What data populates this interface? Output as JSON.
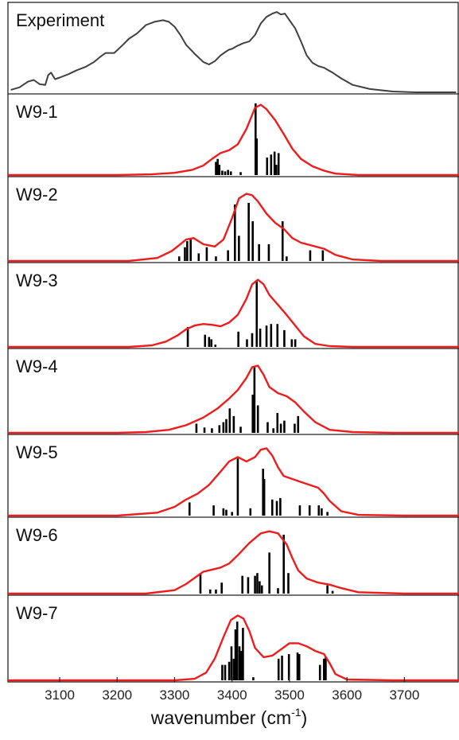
{
  "chart_data": {
    "type": "line",
    "xlabel_main": "wavenumber (cm",
    "xlabel_sup": "-1",
    "xlabel_close": ")",
    "xlim": [
      3010,
      3795
    ],
    "xticks": [
      3100,
      3200,
      3300,
      3400,
      3500,
      3600,
      3700
    ],
    "colors": {
      "experiment": "#404040",
      "simulated": "#ee1c1c",
      "sticks": "#000000"
    },
    "panels": [
      {
        "label": "Experiment",
        "kind": "experiment",
        "ylim": [
          0,
          1
        ],
        "x": [
          3015,
          3030,
          3045,
          3055,
          3065,
          3075,
          3080,
          3085,
          3092,
          3100,
          3115,
          3130,
          3145,
          3160,
          3170,
          3180,
          3195,
          3210,
          3220,
          3235,
          3250,
          3265,
          3280,
          3290,
          3300,
          3310,
          3320,
          3335,
          3350,
          3360,
          3370,
          3380,
          3390,
          3395,
          3400,
          3410,
          3420,
          3430,
          3440,
          3450,
          3460,
          3470,
          3478,
          3485,
          3492,
          3500,
          3510,
          3520,
          3530,
          3540,
          3550,
          3560,
          3575,
          3590,
          3610,
          3640,
          3680,
          3720,
          3760,
          3790
        ],
        "y": [
          0.03,
          0.06,
          0.13,
          0.15,
          0.1,
          0.09,
          0.21,
          0.24,
          0.16,
          0.18,
          0.22,
          0.27,
          0.31,
          0.37,
          0.43,
          0.48,
          0.48,
          0.58,
          0.65,
          0.72,
          0.82,
          0.86,
          0.88,
          0.86,
          0.8,
          0.7,
          0.58,
          0.47,
          0.37,
          0.34,
          0.38,
          0.45,
          0.5,
          0.52,
          0.53,
          0.57,
          0.6,
          0.62,
          0.7,
          0.84,
          0.92,
          0.96,
          0.98,
          0.95,
          0.96,
          0.88,
          0.78,
          0.62,
          0.45,
          0.36,
          0.32,
          0.3,
          0.24,
          0.17,
          0.09,
          0.04,
          0.01,
          0.0,
          0.0,
          0.0
        ]
      },
      {
        "label": "W9-1",
        "kind": "simulated",
        "ylim": [
          0,
          1
        ],
        "x": [
          3010,
          3200,
          3260,
          3300,
          3330,
          3350,
          3365,
          3380,
          3395,
          3410,
          3425,
          3440,
          3450,
          3460,
          3475,
          3490,
          3505,
          3520,
          3540,
          3560,
          3580,
          3620,
          3700,
          3795
        ],
        "y": [
          0.0,
          0.0,
          0.01,
          0.03,
          0.07,
          0.13,
          0.22,
          0.3,
          0.34,
          0.42,
          0.63,
          0.92,
          0.96,
          0.9,
          0.75,
          0.56,
          0.36,
          0.22,
          0.12,
          0.06,
          0.02,
          0.0,
          0.0,
          0.0
        ],
        "sticks": [
          [
            3372,
            0.18
          ],
          [
            3375,
            0.22
          ],
          [
            3378,
            0.14
          ],
          [
            3383,
            0.06
          ],
          [
            3388,
            0.05
          ],
          [
            3393,
            0.07
          ],
          [
            3398,
            0.05
          ],
          [
            3415,
            0.04
          ],
          [
            3441,
            0.98
          ],
          [
            3443,
            0.5
          ],
          [
            3461,
            0.24
          ],
          [
            3468,
            0.28
          ],
          [
            3474,
            0.32
          ],
          [
            3477,
            0.14
          ],
          [
            3481,
            0.3
          ]
        ]
      },
      {
        "label": "W9-2",
        "kind": "simulated",
        "ylim": [
          0,
          1
        ],
        "x": [
          3010,
          3220,
          3270,
          3295,
          3310,
          3320,
          3333,
          3350,
          3370,
          3385,
          3400,
          3412,
          3425,
          3435,
          3445,
          3460,
          3475,
          3490,
          3505,
          3520,
          3540,
          3560,
          3580,
          3610,
          3660,
          3720,
          3795
        ],
        "y": [
          0.0,
          0.0,
          0.04,
          0.13,
          0.22,
          0.28,
          0.3,
          0.22,
          0.19,
          0.28,
          0.56,
          0.82,
          0.88,
          0.86,
          0.78,
          0.62,
          0.5,
          0.42,
          0.3,
          0.24,
          0.2,
          0.16,
          0.08,
          0.02,
          0.0,
          0.0,
          0.0
        ],
        "sticks": [
          [
            3308,
            0.06
          ],
          [
            3318,
            0.18
          ],
          [
            3322,
            0.26
          ],
          [
            3328,
            0.28
          ],
          [
            3342,
            0.1
          ],
          [
            3356,
            0.18
          ],
          [
            3372,
            0.06
          ],
          [
            3393,
            0.14
          ],
          [
            3405,
            0.74
          ],
          [
            3412,
            0.33
          ],
          [
            3429,
            0.76
          ],
          [
            3436,
            0.52
          ],
          [
            3447,
            0.22
          ],
          [
            3464,
            0.22
          ],
          [
            3488,
            0.52
          ],
          [
            3495,
            0.06
          ],
          [
            3536,
            0.14
          ],
          [
            3558,
            0.14
          ]
        ]
      },
      {
        "label": "W9-3",
        "kind": "simulated",
        "ylim": [
          0,
          1
        ],
        "x": [
          3010,
          3220,
          3260,
          3285,
          3305,
          3320,
          3335,
          3350,
          3365,
          3380,
          3395,
          3410,
          3425,
          3435,
          3445,
          3455,
          3465,
          3480,
          3495,
          3510,
          3525,
          3545,
          3570,
          3610,
          3700,
          3795
        ],
        "y": [
          0.0,
          0.0,
          0.02,
          0.07,
          0.15,
          0.23,
          0.28,
          0.3,
          0.29,
          0.27,
          0.32,
          0.42,
          0.63,
          0.82,
          0.88,
          0.82,
          0.68,
          0.55,
          0.42,
          0.28,
          0.14,
          0.04,
          0.01,
          0.0,
          0.0,
          0.0
        ],
        "sticks": [
          [
            3323,
            0.26
          ],
          [
            3353,
            0.16
          ],
          [
            3360,
            0.13
          ],
          [
            3364,
            0.1
          ],
          [
            3371,
            0.03
          ],
          [
            3411,
            0.2
          ],
          [
            3426,
            0.1
          ],
          [
            3435,
            0.18
          ],
          [
            3443,
            0.86
          ],
          [
            3449,
            0.24
          ],
          [
            3460,
            0.28
          ],
          [
            3468,
            0.3
          ],
          [
            3479,
            0.3
          ],
          [
            3491,
            0.22
          ],
          [
            3504,
            0.1
          ],
          [
            3510,
            0.1
          ]
        ]
      },
      {
        "label": "W9-4",
        "kind": "simulated",
        "ylim": [
          0,
          1
        ],
        "x": [
          3010,
          3200,
          3250,
          3290,
          3320,
          3350,
          3375,
          3395,
          3410,
          3425,
          3435,
          3445,
          3455,
          3465,
          3480,
          3495,
          3510,
          3525,
          3545,
          3570,
          3610,
          3680,
          3795
        ],
        "y": [
          0.0,
          0.0,
          0.01,
          0.04,
          0.1,
          0.2,
          0.32,
          0.45,
          0.56,
          0.72,
          0.86,
          0.88,
          0.76,
          0.6,
          0.52,
          0.48,
          0.4,
          0.28,
          0.14,
          0.04,
          0.01,
          0.0,
          0.0
        ],
        "sticks": [
          [
            3338,
            0.12
          ],
          [
            3352,
            0.07
          ],
          [
            3365,
            0.06
          ],
          [
            3378,
            0.1
          ],
          [
            3385,
            0.14
          ],
          [
            3390,
            0.18
          ],
          [
            3396,
            0.32
          ],
          [
            3403,
            0.22
          ],
          [
            3415,
            0.08
          ],
          [
            3436,
            0.5
          ],
          [
            3439,
            0.86
          ],
          [
            3445,
            0.36
          ],
          [
            3462,
            0.14
          ],
          [
            3472,
            0.06
          ],
          [
            3479,
            0.26
          ],
          [
            3485,
            0.12
          ],
          [
            3491,
            0.16
          ],
          [
            3509,
            0.12
          ],
          [
            3515,
            0.22
          ]
        ]
      },
      {
        "label": "W9-5",
        "kind": "simulated",
        "ylim": [
          0,
          1
        ],
        "x": [
          3010,
          3200,
          3270,
          3300,
          3320,
          3340,
          3360,
          3380,
          3395,
          3410,
          3425,
          3440,
          3450,
          3460,
          3470,
          3480,
          3490,
          3505,
          3520,
          3535,
          3550,
          3560,
          3570,
          3590,
          3620,
          3700,
          3795
        ],
        "y": [
          0.0,
          0.0,
          0.04,
          0.12,
          0.22,
          0.3,
          0.42,
          0.6,
          0.74,
          0.8,
          0.74,
          0.8,
          0.9,
          0.92,
          0.82,
          0.66,
          0.54,
          0.5,
          0.46,
          0.42,
          0.38,
          0.3,
          0.2,
          0.06,
          0.01,
          0.0,
          0.0
        ],
        "sticks": [
          [
            3326,
            0.18
          ],
          [
            3368,
            0.14
          ],
          [
            3385,
            0.1
          ],
          [
            3390,
            0.08
          ],
          [
            3400,
            0.05
          ],
          [
            3410,
            0.78
          ],
          [
            3432,
            0.1
          ],
          [
            3454,
            0.64
          ],
          [
            3456,
            0.5
          ],
          [
            3470,
            0.22
          ],
          [
            3478,
            0.2
          ],
          [
            3484,
            0.24
          ],
          [
            3518,
            0.14
          ],
          [
            3535,
            0.14
          ],
          [
            3551,
            0.14
          ],
          [
            3556,
            0.1
          ],
          [
            3566,
            0.05
          ]
        ]
      },
      {
        "label": "W9-6",
        "kind": "simulated",
        "ylim": [
          0,
          1
        ],
        "x": [
          3010,
          3250,
          3300,
          3320,
          3340,
          3350,
          3365,
          3380,
          3395,
          3410,
          3430,
          3450,
          3465,
          3480,
          3495,
          3505,
          3515,
          3530,
          3550,
          3570,
          3590,
          3620,
          3700,
          3795
        ],
        "y": [
          0.0,
          0.0,
          0.05,
          0.14,
          0.26,
          0.32,
          0.35,
          0.38,
          0.44,
          0.56,
          0.74,
          0.88,
          0.91,
          0.88,
          0.72,
          0.52,
          0.34,
          0.22,
          0.16,
          0.13,
          0.08,
          0.02,
          0.0,
          0.0
        ],
        "sticks": [
          [
            3345,
            0.3
          ],
          [
            3362,
            0.06
          ],
          [
            3372,
            0.06
          ],
          [
            3382,
            0.16
          ],
          [
            3418,
            0.26
          ],
          [
            3428,
            0.24
          ],
          [
            3440,
            0.26
          ],
          [
            3444,
            0.3
          ],
          [
            3448,
            0.18
          ],
          [
            3452,
            0.12
          ],
          [
            3465,
            0.6
          ],
          [
            3480,
            0.08
          ],
          [
            3490,
            0.86
          ],
          [
            3498,
            0.3
          ],
          [
            3566,
            0.12
          ],
          [
            3575,
            0.04
          ]
        ]
      },
      {
        "label": "W9-7",
        "kind": "simulated",
        "ylim": [
          0,
          1
        ],
        "x": [
          3010,
          3300,
          3335,
          3355,
          3370,
          3385,
          3398,
          3410,
          3420,
          3430,
          3440,
          3455,
          3470,
          3485,
          3500,
          3515,
          3530,
          3545,
          3560,
          3570,
          3580,
          3600,
          3680,
          3795
        ],
        "y": [
          0.0,
          0.0,
          0.02,
          0.1,
          0.28,
          0.56,
          0.78,
          0.84,
          0.8,
          0.64,
          0.42,
          0.3,
          0.32,
          0.4,
          0.48,
          0.48,
          0.44,
          0.38,
          0.34,
          0.22,
          0.08,
          0.01,
          0.0,
          0.0
        ],
        "sticks": [
          [
            3383,
            0.2
          ],
          [
            3388,
            0.2
          ],
          [
            3395,
            0.24
          ],
          [
            3399,
            0.44
          ],
          [
            3403,
            0.28
          ],
          [
            3406,
            0.66
          ],
          [
            3409,
            0.76
          ],
          [
            3413,
            0.44
          ],
          [
            3416,
            0.38
          ],
          [
            3419,
            0.68
          ],
          [
            3437,
            0.04
          ],
          [
            3481,
            0.28
          ],
          [
            3487,
            0.32
          ],
          [
            3499,
            0.34
          ],
          [
            3514,
            0.36
          ],
          [
            3517,
            0.34
          ],
          [
            3553,
            0.2
          ],
          [
            3560,
            0.28
          ],
          [
            3563,
            0.3
          ]
        ]
      }
    ]
  }
}
